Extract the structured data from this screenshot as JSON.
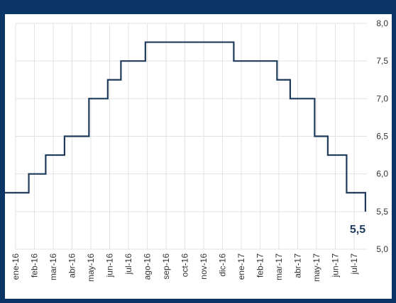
{
  "chart_data": {
    "type": "line",
    "step": true,
    "title": "",
    "xlabel": "",
    "ylabel": "",
    "line_color": "#1f3b5c",
    "grid": "vertical and horizontal, light gray",
    "y_axis_position": "right",
    "ylim": [
      5.0,
      8.0
    ],
    "yticks": [
      "5,0",
      "5,5",
      "6,0",
      "6,5",
      "7,0",
      "7,5",
      "8,0"
    ],
    "categories": [
      "ene-16",
      "feb-16",
      "mar-16",
      "abr-16",
      "may-16",
      "jun-16",
      "jul-16",
      "ago-16",
      "sep-16",
      "oct-16",
      "nov-16",
      "dic-16",
      "ene-17",
      "feb-17",
      "mar-17",
      "abr-17",
      "may-17",
      "jun-17",
      "jul-17"
    ],
    "series": [
      {
        "points": [
          [
            "ene-16",
            5.75
          ],
          [
            "ene-16+0.7",
            6.0
          ],
          [
            "feb-16+0.6",
            6.25
          ],
          [
            "mar-16+0.6",
            6.5
          ],
          [
            "abr-16+0.9",
            7.0
          ],
          [
            "may-16+0.9",
            7.25
          ],
          [
            "jun-16+0.6",
            7.5
          ],
          [
            "jul-16+0.9",
            7.75
          ],
          [
            "dic-16+0.6",
            7.5
          ],
          [
            "feb-17+0.9",
            7.25
          ],
          [
            "mar-17+0.6",
            7.0
          ],
          [
            "abr-17+0.9",
            6.5
          ],
          [
            "may-17+0.6",
            6.25
          ],
          [
            "jun-17+0.6",
            5.75
          ],
          [
            "jul-17+0.6",
            5.5
          ]
        ]
      }
    ],
    "end_label": "5,5"
  }
}
